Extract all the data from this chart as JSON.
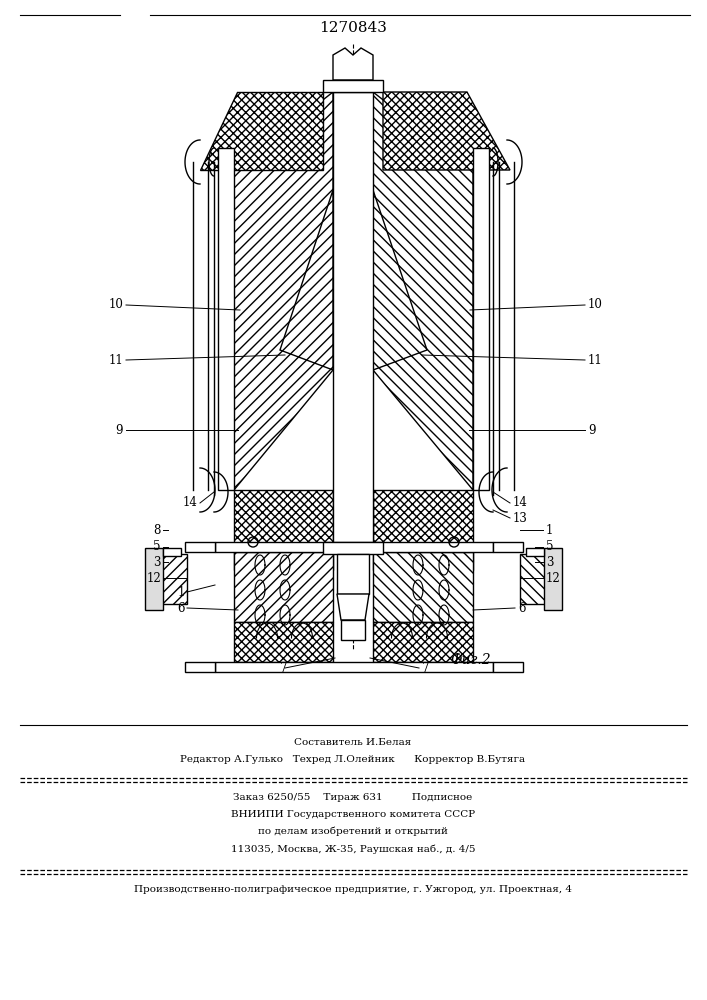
{
  "title": "1270843",
  "fig_label": "Фиг.2",
  "bg_color": "#ffffff",
  "lc": "#000000",
  "footer": [
    "Составитель И.Белая",
    "Редактор А.Гулько   Техред Л.Олейник      Корректор В.Бутяга",
    "Заказ 6250/55    Тираж 631         Подписное",
    "ВНИИПИ Государственного комитета СССР",
    "по делам изобретений и открытий",
    "113035, Москва, Ж-35, Раушская наб., д. 4/5",
    "Производственно-полиграфическое предприятие, г. Ужгород, ул. Проектная, 4"
  ]
}
